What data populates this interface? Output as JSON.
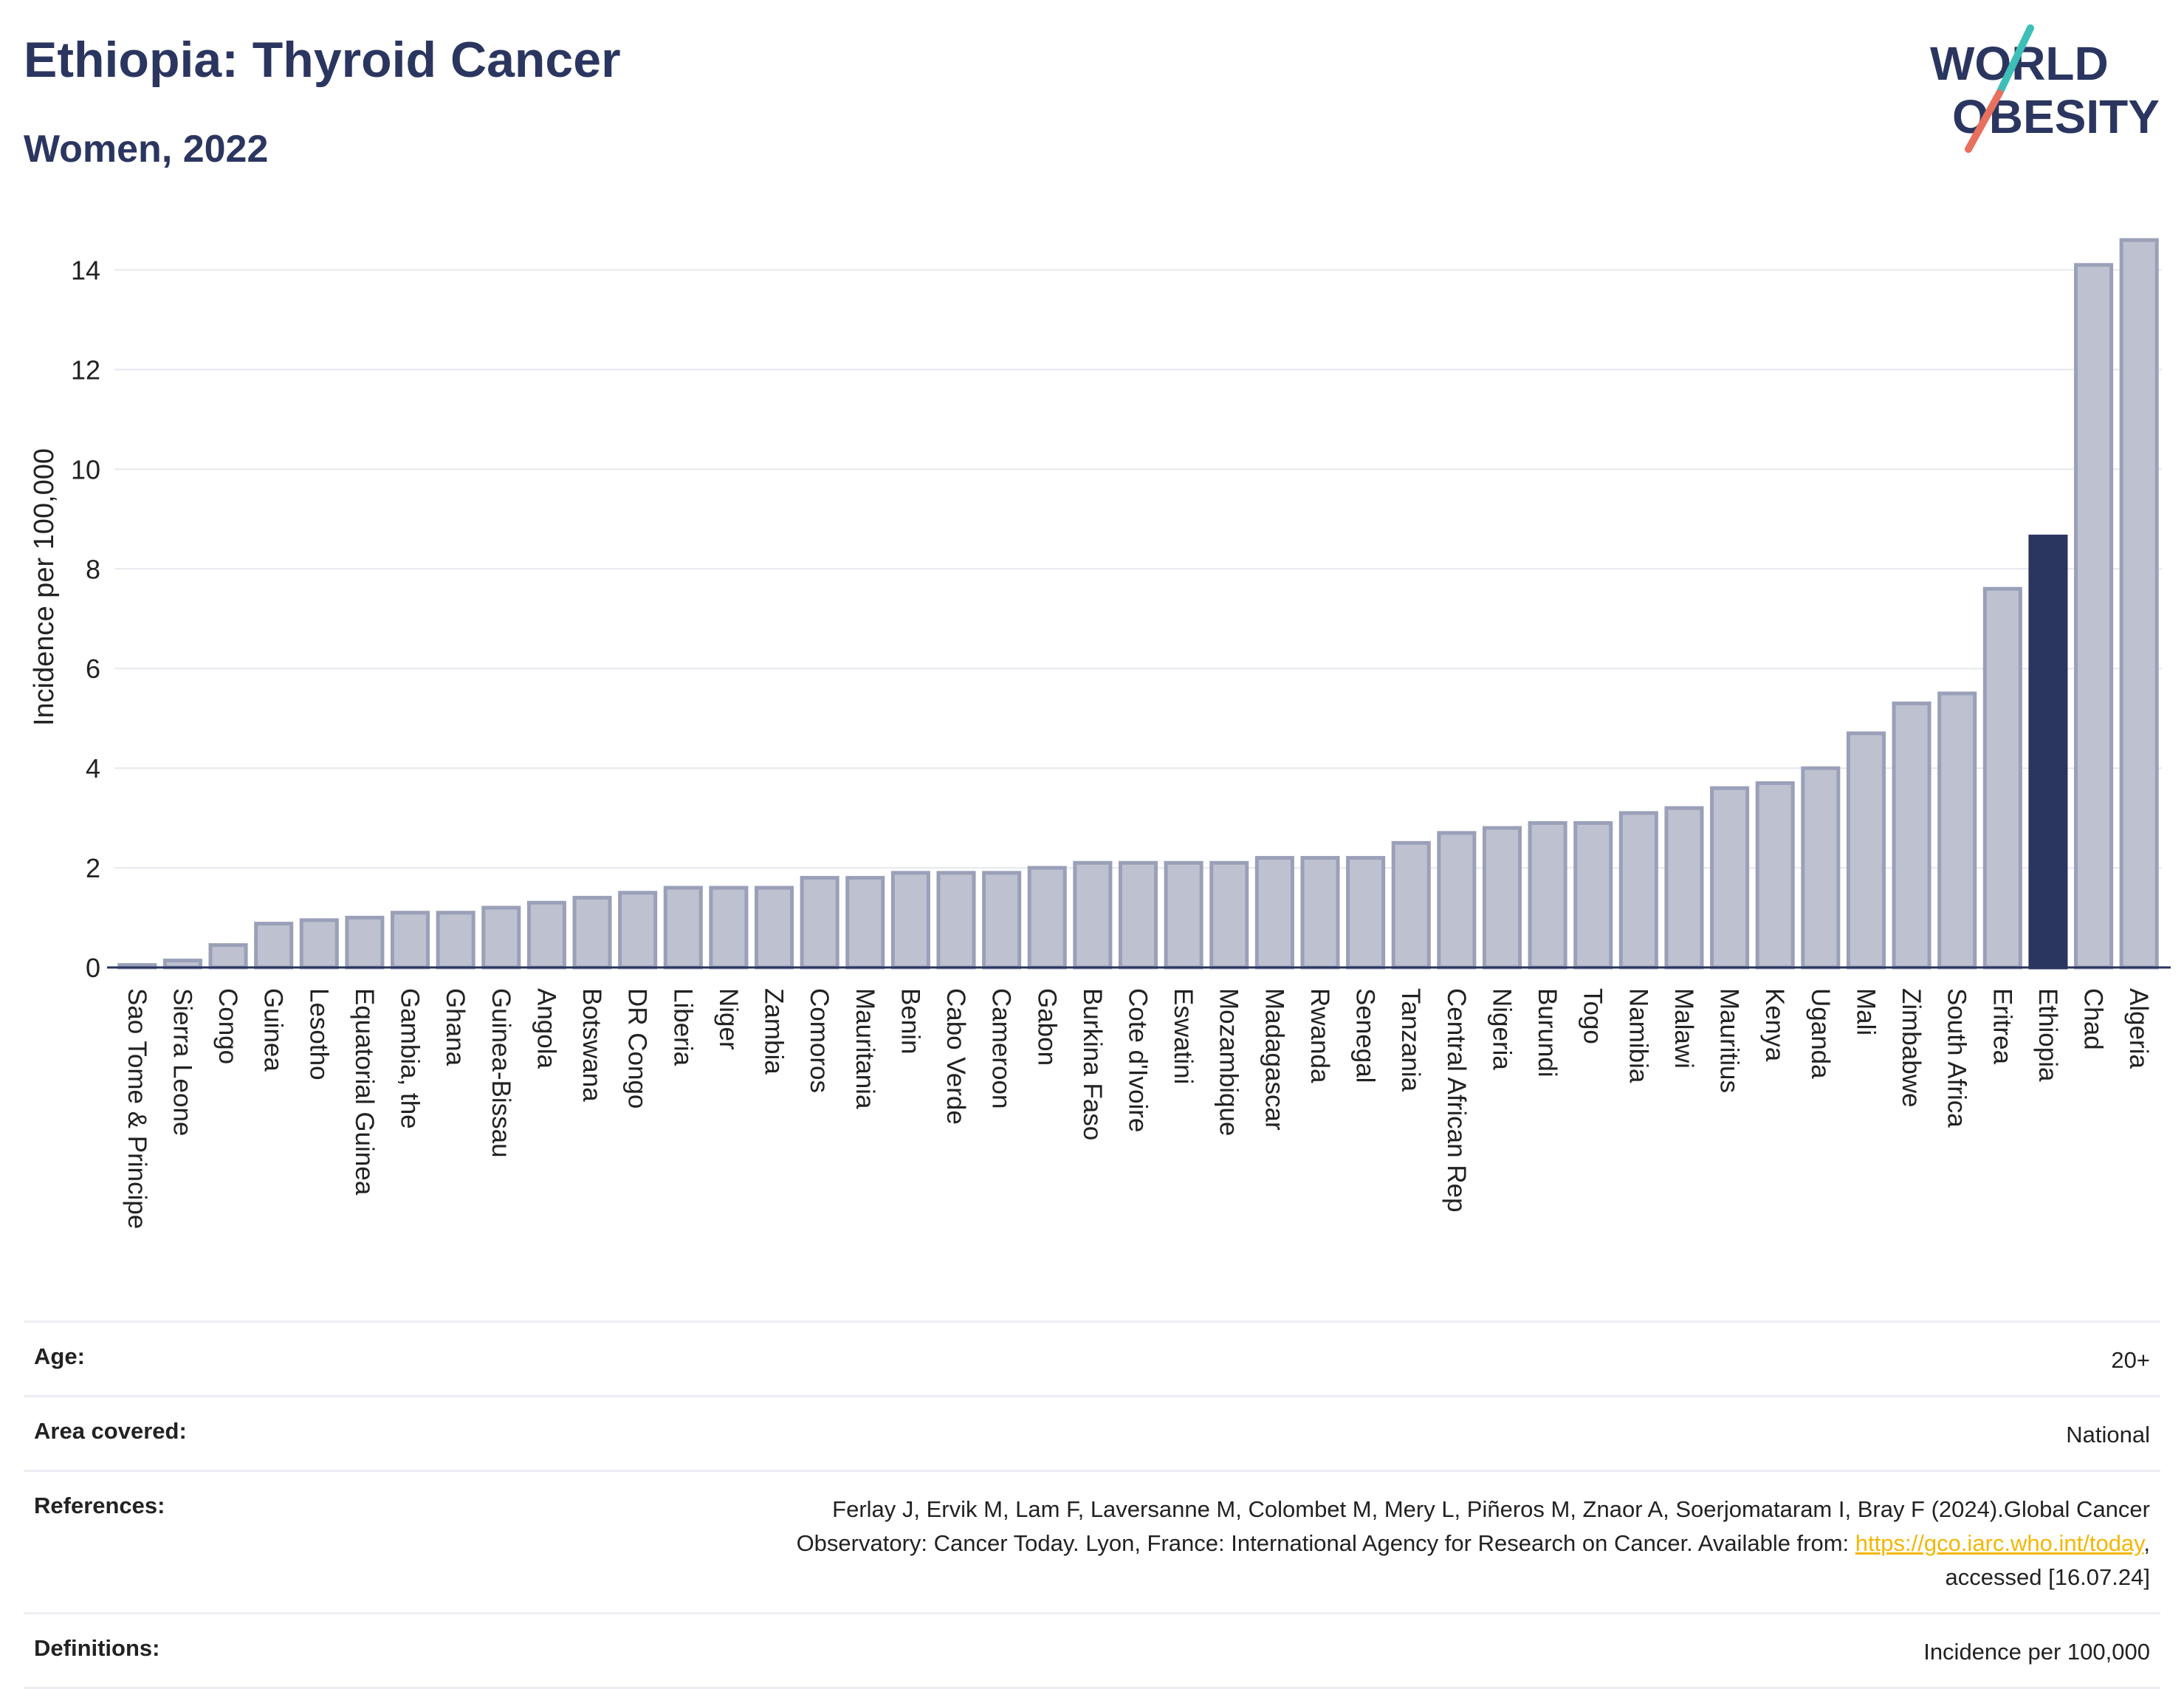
{
  "header": {
    "title": "Ethiopia: Thyroid Cancer",
    "subtitle": "Women, 2022"
  },
  "logo": {
    "line1": "WORLD",
    "line2": "OBESITY"
  },
  "colors": {
    "bar": "#bec1d0",
    "bar_stroke": "#9aa0b8",
    "highlight": "#2b3660",
    "title": "#2b3660",
    "logo_teal": "#3dbfb8",
    "logo_coral": "#e8705e"
  },
  "chart_data": {
    "type": "bar",
    "ylabel": "Incidence per 100,000",
    "ylim": [
      0,
      14.6
    ],
    "yticks": [
      0,
      2,
      4,
      6,
      8,
      10,
      12,
      14
    ],
    "grid": true,
    "highlight": "Ethiopia",
    "categories": [
      "Sao Tome & Principe",
      "Sierra Leone",
      "Congo",
      "Guinea",
      "Lesotho",
      "Equatorial Guinea",
      "Gambia, the",
      "Ghana",
      "Guinea-Bissau",
      "Angola",
      "Botswana",
      "DR Congo",
      "Liberia",
      "Niger",
      "Zambia",
      "Comoros",
      "Mauritania",
      "Benin",
      "Cabo Verde",
      "Cameroon",
      "Gabon",
      "Burkina Faso",
      "Cote d'Ivoire",
      "Eswatini",
      "Mozambique",
      "Madagascar",
      "Rwanda",
      "Senegal",
      "Tanzania",
      "Central African Rep",
      "Nigeria",
      "Burundi",
      "Togo",
      "Namibia",
      "Malawi",
      "Mauritius",
      "Kenya",
      "Uganda",
      "Mali",
      "Zimbabwe",
      "South Africa",
      "Eritrea",
      "Ethiopia",
      "Chad",
      "Algeria"
    ],
    "values": [
      0.05,
      0.14,
      0.45,
      0.88,
      0.95,
      1.0,
      1.1,
      1.1,
      1.2,
      1.3,
      1.4,
      1.5,
      1.6,
      1.6,
      1.6,
      1.8,
      1.8,
      1.9,
      1.9,
      1.9,
      2.0,
      2.1,
      2.1,
      2.1,
      2.1,
      2.2,
      2.2,
      2.2,
      2.5,
      2.7,
      2.8,
      2.9,
      2.9,
      3.1,
      3.2,
      3.6,
      3.7,
      4.0,
      4.7,
      5.3,
      5.5,
      7.6,
      8.65,
      14.1,
      14.6
    ]
  },
  "meta": {
    "age_label": "Age:",
    "age_value": "20+",
    "area_label": "Area covered:",
    "area_value": "National",
    "references_label": "References:",
    "references_line1": "Ferlay J, Ervik M, Lam F, Laversanne M, Colombet M, Mery L, Piñeros M, Znaor A, Soerjomataram I, Bray F (2024).Global Cancer",
    "references_line2_pre": "Observatory: Cancer Today. Lyon, France: International Agency for Research on Cancer. Available from: ",
    "references_link": "https://gco.iarc.who.int/today",
    "references_line2_post": ",",
    "references_line3": "accessed [16.07.24]",
    "definitions_label": "Definitions:",
    "definitions_value": "Incidence per 100,000"
  }
}
